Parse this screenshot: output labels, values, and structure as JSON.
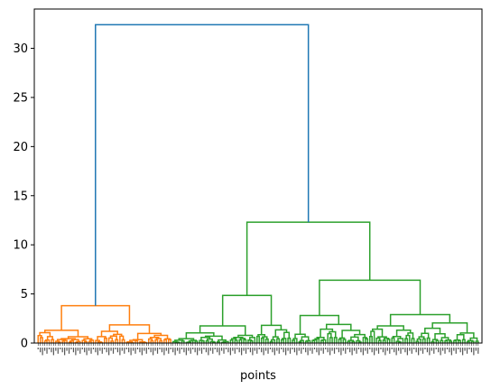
{
  "chart_data": {
    "type": "dendrogram",
    "title": "",
    "xlabel": "points",
    "ylabel": "",
    "ylim": [
      0,
      34
    ],
    "yticks": [
      0,
      5,
      10,
      15,
      20,
      25,
      30
    ],
    "grid": false,
    "legend": "none",
    "leaf_count": 200,
    "colors": {
      "root": "#1f77b4",
      "cluster_1": "#ff7f0e",
      "cluster_2": "#2ca02c"
    },
    "merges": [
      {
        "id": "root",
        "height": 32.4,
        "color": "#1f77b4",
        "children": [
          "O",
          "G"
        ]
      },
      {
        "id": "O",
        "height": 3.8,
        "color": "#ff7f0e",
        "children": [
          "O1",
          "O2"
        ]
      },
      {
        "id": "O1",
        "height": 1.3,
        "color": "#ff7f0e",
        "leaf_range": [
          0,
          26
        ]
      },
      {
        "id": "O2",
        "height": 1.85,
        "color": "#ff7f0e",
        "leaf_range": [
          26,
          61
        ]
      },
      {
        "id": "G",
        "height": 12.3,
        "color": "#2ca02c",
        "children": [
          "GL",
          "GR"
        ]
      },
      {
        "id": "GL",
        "height": 4.85,
        "color": "#2ca02c",
        "children": [
          "GL1",
          "GL2"
        ]
      },
      {
        "id": "GL1",
        "height": 1.75,
        "color": "#2ca02c",
        "leaf_range": [
          61,
          99
        ]
      },
      {
        "id": "GL2",
        "height": 1.8,
        "color": "#2ca02c",
        "leaf_range": [
          99,
          115
        ]
      },
      {
        "id": "GR",
        "height": 6.4,
        "color": "#2ca02c",
        "children": [
          "GR1",
          "GR2"
        ]
      },
      {
        "id": "GR1",
        "height": 2.8,
        "color": "#2ca02c",
        "children": [
          "GR1a",
          "GR1b"
        ]
      },
      {
        "id": "GR1a",
        "height": 0.9,
        "color": "#2ca02c",
        "leaf_range": [
          115,
          124
        ]
      },
      {
        "id": "GR1b",
        "height": 1.9,
        "color": "#2ca02c",
        "leaf_range": [
          124,
          150
        ]
      },
      {
        "id": "GR2",
        "height": 2.9,
        "color": "#2ca02c",
        "children": [
          "GR2a",
          "GR2b"
        ]
      },
      {
        "id": "GR2a",
        "height": 1.75,
        "color": "#2ca02c",
        "leaf_range": [
          150,
          171
        ]
      },
      {
        "id": "GR2b",
        "height": 2.05,
        "color": "#2ca02c",
        "leaf_range": [
          171,
          200
        ]
      }
    ]
  }
}
